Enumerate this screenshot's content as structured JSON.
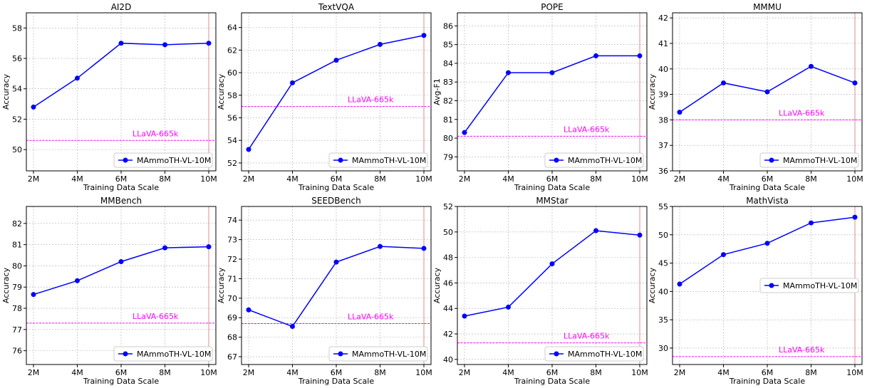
{
  "chart_data": [
    {
      "type": "line",
      "title": "AI2D",
      "xlabel": "Training Data Scale",
      "ylabel": "Accuracy",
      "categories": [
        "2M",
        "4M",
        "6M",
        "8M",
        "10M"
      ],
      "series": [
        {
          "name": "MAmmoTH-VL-10M",
          "values": [
            52.8,
            54.7,
            57.0,
            56.9,
            57.0
          ]
        }
      ],
      "ylim": [
        48.6,
        59.0
      ],
      "yticks": [
        50,
        52,
        54,
        56,
        58
      ],
      "reference": {
        "label": "LLaVA-665k",
        "value": 50.6
      },
      "grid": true,
      "legend_position": "lower right"
    },
    {
      "type": "line",
      "title": "TextVQA",
      "xlabel": "Training Data Scale",
      "ylabel": "Accuracy",
      "categories": [
        "2M",
        "4M",
        "6M",
        "8M",
        "10M"
      ],
      "series": [
        {
          "name": "MAmmoTH-VL-10M",
          "values": [
            53.2,
            59.1,
            61.1,
            62.5,
            63.3
          ]
        }
      ],
      "ylim": [
        51.3,
        65.3
      ],
      "yticks": [
        52,
        54,
        56,
        58,
        60,
        62,
        64
      ],
      "reference": {
        "label": "LLaVA-665k",
        "value": 57.0
      },
      "grid": true,
      "legend_position": "lower right"
    },
    {
      "type": "line",
      "title": "POPE",
      "xlabel": "Training Data Scale",
      "ylabel": "Avg-F1",
      "categories": [
        "2M",
        "4M",
        "6M",
        "8M",
        "10M"
      ],
      "series": [
        {
          "name": "MAmmoTH-VL-10M",
          "values": [
            80.3,
            83.5,
            83.5,
            84.4,
            84.4
          ]
        }
      ],
      "ylim": [
        78.25,
        86.7
      ],
      "yticks": [
        79,
        80,
        81,
        82,
        83,
        84,
        85,
        86
      ],
      "reference": {
        "label": "LLaVA-665k",
        "value": 80.1
      },
      "grid": true,
      "legend_position": "lower right"
    },
    {
      "type": "line",
      "title": "MMMU",
      "xlabel": "Training Data Scale",
      "ylabel": "Accuracy",
      "categories": [
        "2M",
        "4M",
        "6M",
        "8M",
        "10M"
      ],
      "series": [
        {
          "name": "MAmmoTH-VL-10M",
          "values": [
            38.3,
            39.45,
            39.1,
            40.1,
            39.45
          ]
        }
      ],
      "ylim": [
        36.0,
        42.2
      ],
      "yticks": [
        36,
        37,
        38,
        39,
        40,
        41,
        42
      ],
      "reference": {
        "label": "LLaVA-665k",
        "value": 38.0
      },
      "grid": true,
      "legend_position": "lower right"
    },
    {
      "type": "line",
      "title": "MMBench",
      "xlabel": "Training Data Scale",
      "ylabel": "Accuracy",
      "categories": [
        "2M",
        "4M",
        "6M",
        "8M",
        "10M"
      ],
      "series": [
        {
          "name": "MAmmoTH-VL-10M",
          "values": [
            78.65,
            79.3,
            80.2,
            80.85,
            80.9
          ]
        }
      ],
      "ylim": [
        75.35,
        82.8
      ],
      "yticks": [
        76,
        77,
        78,
        79,
        80,
        81,
        82
      ],
      "reference": {
        "label": "LLaVA-665k",
        "value": 77.3
      },
      "grid": true,
      "legend_position": "lower right"
    },
    {
      "type": "line",
      "title": "SEEDBench",
      "xlabel": "Training Data Scale",
      "ylabel": "Accuracy",
      "categories": [
        "2M",
        "4M",
        "6M",
        "8M",
        "10M"
      ],
      "series": [
        {
          "name": "MAmmoTH-VL-10M",
          "values": [
            69.4,
            68.55,
            71.85,
            72.65,
            72.55
          ]
        }
      ],
      "ylim": [
        66.6,
        74.7
      ],
      "yticks": [
        67,
        68,
        69,
        70,
        71,
        72,
        73,
        74
      ],
      "reference": {
        "label": "LLaVA-665k",
        "value": 68.7
      },
      "grid": true,
      "legend_position": "lower right"
    },
    {
      "type": "line",
      "title": "MMStar",
      "xlabel": "Training Data Scale",
      "ylabel": "Accuracy",
      "categories": [
        "2M",
        "4M",
        "6M",
        "8M",
        "10M"
      ],
      "series": [
        {
          "name": "MAmmoTH-VL-10M",
          "values": [
            43.4,
            44.1,
            47.5,
            50.1,
            49.75
          ]
        }
      ],
      "ylim": [
        39.6,
        52.0
      ],
      "yticks": [
        40,
        42,
        44,
        46,
        48,
        50,
        52
      ],
      "reference": {
        "label": "LLaVA-665k",
        "value": 41.3
      },
      "grid": true,
      "legend_position": "lower right"
    },
    {
      "type": "line",
      "title": "MathVista",
      "xlabel": "Training Data Scale",
      "ylabel": "Accuracy",
      "categories": [
        "2M",
        "4M",
        "6M",
        "8M",
        "10M"
      ],
      "series": [
        {
          "name": "MAmmoTH-VL-10M",
          "values": [
            41.3,
            46.5,
            48.5,
            52.1,
            53.1
          ]
        }
      ],
      "ylim": [
        27.1,
        55.0
      ],
      "yticks": [
        30,
        35,
        40,
        45,
        50,
        55
      ],
      "reference": {
        "label": "LLaVA-665k",
        "value": 28.5
      },
      "grid": true,
      "legend_position": "center right"
    }
  ],
  "colors": {
    "series": "#0000ff",
    "reference": "#ff00ff",
    "vertical_marker": "#e08080",
    "grid": "#b0b0b0"
  }
}
